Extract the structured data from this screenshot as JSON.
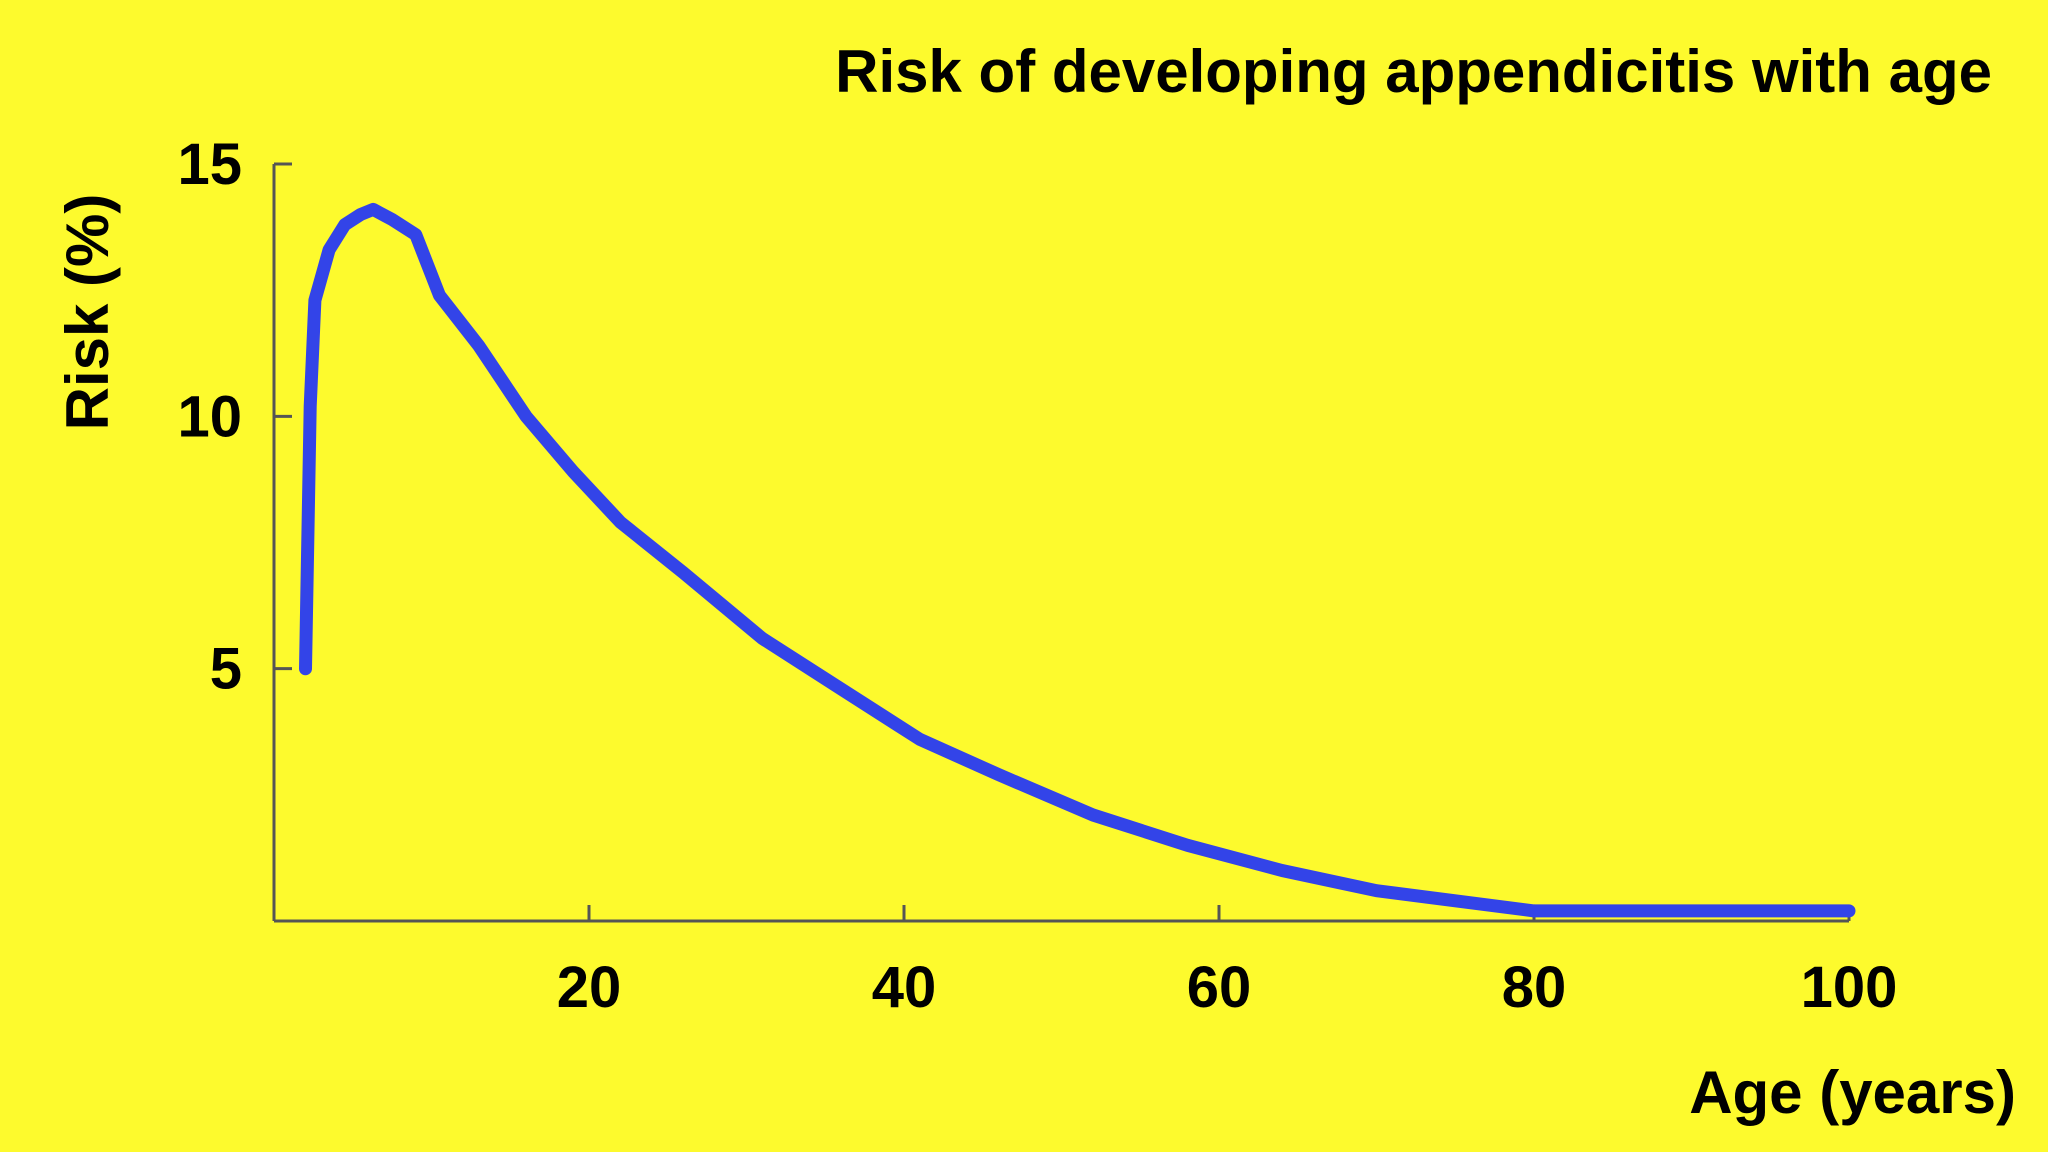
{
  "chart_data": {
    "type": "line",
    "title": "Risk of developing appendicitis with age",
    "xlabel": "Age (years)",
    "ylabel": "Risk (%)",
    "xlim": [
      0,
      100
    ],
    "ylim": [
      0,
      15
    ],
    "x_ticks": [
      20,
      40,
      60,
      80,
      100
    ],
    "x_tick_labels": [
      "20",
      "40",
      "60",
      "80",
      "100"
    ],
    "y_ticks": [
      5,
      10,
      15
    ],
    "y_tick_labels": [
      "5",
      "10",
      "15"
    ],
    "grid": false,
    "colors": {
      "background": "#fdfa2d",
      "line": "#3344e8",
      "axis": "#555555",
      "text": "#000000"
    },
    "series": [
      {
        "x": [
          2,
          2.3,
          2.6,
          3.5,
          4.5,
          5.5,
          6.3,
          7.5,
          9,
          10.5,
          13,
          16,
          19,
          22,
          26,
          31,
          36,
          41,
          46,
          52,
          58,
          64,
          70,
          75,
          80,
          90,
          100
        ],
        "y": [
          5.0,
          10.2,
          12.3,
          13.3,
          13.8,
          14.0,
          14.1,
          13.9,
          13.6,
          12.4,
          11.4,
          10.0,
          8.9,
          7.9,
          6.9,
          5.6,
          4.6,
          3.6,
          2.9,
          2.1,
          1.5,
          1.0,
          0.6,
          0.4,
          0.2,
          0.2,
          0.2
        ]
      }
    ]
  }
}
